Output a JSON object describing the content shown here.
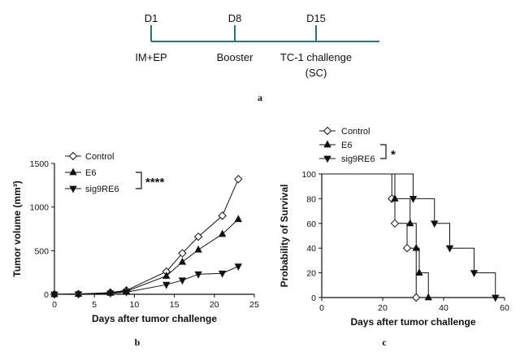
{
  "timeline": {
    "events": [
      {
        "day": "D1",
        "label": "IM+EP",
        "label2": ""
      },
      {
        "day": "D8",
        "label": "Booster",
        "label2": ""
      },
      {
        "day": "D15",
        "label": "TC-1 challenge",
        "label2": "(SC)"
      }
    ],
    "color": "#2e6f73",
    "panel_label": "a"
  },
  "chart_data": [
    {
      "type": "line",
      "panel_label": "b",
      "xlabel": "Days after tumor challenge",
      "ylabel": "Tumor volume (mm³)",
      "xlim": [
        0,
        25
      ],
      "ylim": [
        0,
        1500
      ],
      "xticks": [
        0,
        5,
        10,
        15,
        20,
        25
      ],
      "yticks": [
        0,
        500,
        1000,
        1500
      ],
      "significance": "****",
      "series": [
        {
          "name": "Control",
          "marker": "diamond-open",
          "x": [
            0,
            3,
            7,
            9,
            14,
            16,
            18,
            21,
            23
          ],
          "y": [
            0,
            3,
            20,
            45,
            260,
            470,
            660,
            900,
            1320
          ]
        },
        {
          "name": "E6",
          "marker": "triangle-up",
          "x": [
            0,
            3,
            7,
            9,
            14,
            16,
            18,
            21,
            23
          ],
          "y": [
            0,
            3,
            15,
            35,
            210,
            370,
            510,
            690,
            860
          ]
        },
        {
          "name": "sig9RE6",
          "marker": "triangle-down",
          "x": [
            0,
            3,
            7,
            9,
            14,
            16,
            18,
            21,
            23
          ],
          "y": [
            0,
            2,
            10,
            25,
            110,
            160,
            230,
            240,
            320
          ]
        }
      ]
    },
    {
      "type": "line",
      "subtype": "survival-step",
      "panel_label": "c",
      "xlabel": "Days after tumor challenge",
      "ylabel": "Probability of Survival",
      "xlim": [
        0,
        60
      ],
      "ylim": [
        0,
        100
      ],
      "xticks": [
        0,
        20,
        40,
        60
      ],
      "yticks": [
        0,
        20,
        40,
        60,
        80,
        100
      ],
      "significance": "*",
      "series": [
        {
          "name": "Control",
          "marker": "diamond-open",
          "steps": [
            [
              0,
              100
            ],
            [
              23,
              100
            ],
            [
              23,
              80
            ],
            [
              24,
              80
            ],
            [
              24,
              60
            ],
            [
              28,
              60
            ],
            [
              28,
              40
            ],
            [
              31,
              40
            ],
            [
              31,
              0
            ]
          ],
          "points": [
            [
              23,
              80
            ],
            [
              24,
              60
            ],
            [
              28,
              40
            ],
            [
              31,
              0
            ]
          ]
        },
        {
          "name": "E6",
          "marker": "triangle-up",
          "steps": [
            [
              0,
              100
            ],
            [
              24,
              100
            ],
            [
              24,
              80
            ],
            [
              29,
              80
            ],
            [
              29,
              60
            ],
            [
              31,
              60
            ],
            [
              31,
              40
            ],
            [
              32,
              40
            ],
            [
              32,
              20
            ],
            [
              35,
              20
            ],
            [
              35,
              0
            ]
          ],
          "points": [
            [
              24,
              80
            ],
            [
              29,
              60
            ],
            [
              31,
              40
            ],
            [
              32,
              20
            ],
            [
              35,
              0
            ]
          ]
        },
        {
          "name": "sig9RE6",
          "marker": "triangle-down",
          "steps": [
            [
              0,
              100
            ],
            [
              30,
              100
            ],
            [
              30,
              80
            ],
            [
              37,
              80
            ],
            [
              37,
              60
            ],
            [
              42,
              60
            ],
            [
              42,
              40
            ],
            [
              50,
              40
            ],
            [
              50,
              20
            ],
            [
              57,
              20
            ],
            [
              57,
              0
            ]
          ],
          "points": [
            [
              30,
              80
            ],
            [
              37,
              60
            ],
            [
              42,
              40
            ],
            [
              50,
              20
            ],
            [
              57,
              0
            ]
          ]
        }
      ]
    }
  ]
}
